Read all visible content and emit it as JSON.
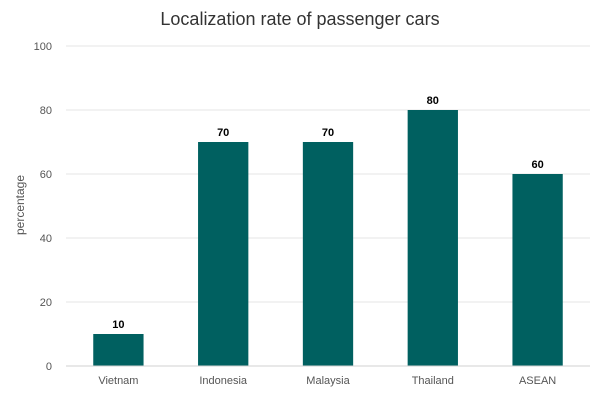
{
  "chart_data": {
    "type": "bar",
    "title": "Localization rate of passenger cars",
    "xlabel": "",
    "ylabel": "percentage",
    "categories": [
      "Vietnam",
      "Indonesia",
      "Malaysia",
      "Thailand",
      "ASEAN"
    ],
    "values": [
      10,
      70,
      70,
      80,
      60
    ],
    "ylim": [
      0,
      100
    ],
    "yticks": [
      0,
      20,
      40,
      60,
      80,
      100
    ],
    "grid": true,
    "legend": "none",
    "bar_color": "#006060"
  }
}
